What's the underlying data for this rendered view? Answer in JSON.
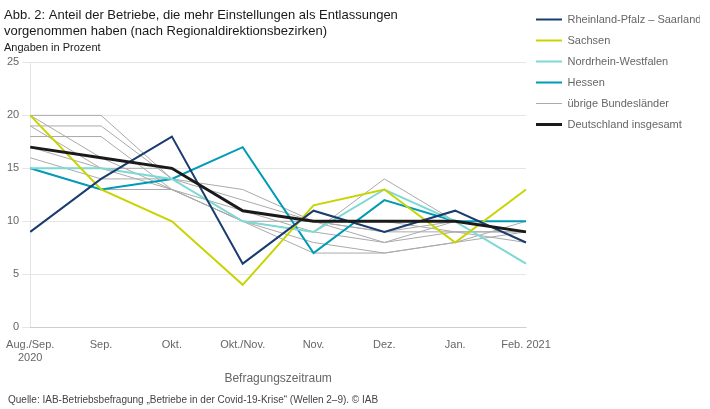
{
  "chart_data": {
    "type": "line",
    "title": [
      "Abb. 2: Anteil der Betriebe, die mehr Einstellungen als Entlassungen",
      "vorgenommen haben (nach Regionaldirektionsbezirken)"
    ],
    "subtitle": "Angaben in Prozent",
    "x_label": "Befragungszeitraum",
    "annotations": [
      "Quelle: IAB-Betriebsbefragung „Betriebe in der Covid-19-Krise“ (Wellen 2–9). © IAB"
    ],
    "categories": [
      "Aug./Sep.\n2020",
      "Sep.",
      "Okt.",
      "Okt./Nov.",
      "Nov.",
      "Dez.",
      "Jan.",
      "Feb. 2021"
    ],
    "series": [
      {
        "name": "Rheinland-Pfalz – Saarland",
        "color": "#1a3c6e",
        "values": [
          9,
          14,
          18,
          6,
          11,
          9,
          11,
          8
        ]
      },
      {
        "name": "Sachsen",
        "color": "#c8d400",
        "values": [
          20,
          13,
          10,
          4,
          11.5,
          13,
          8,
          13
        ]
      },
      {
        "name": "Nordrhein-Westfalen",
        "color": "#7ed8d4",
        "values": [
          15,
          15,
          14,
          10,
          9,
          13,
          10,
          6
        ]
      },
      {
        "name": "Hessen",
        "color": "#009bb4",
        "values": [
          15,
          13,
          14,
          17,
          7,
          12,
          10,
          10
        ]
      },
      {
        "name": "übrige Bundesländer",
        "color": "#aaaaaa",
        "values": [
          20,
          20,
          14,
          13,
          10,
          8,
          10,
          9
        ]
      },
      {
        "name": "übrige Bundesländer",
        "color": "#aaaaaa",
        "values": [
          19,
          19,
          14,
          12,
          10,
          9,
          9,
          9
        ]
      },
      {
        "name": "übrige Bundesländer",
        "color": "#aaaaaa",
        "values": [
          18,
          18,
          13,
          11,
          9,
          8,
          9,
          8
        ]
      },
      {
        "name": "übrige Bundesländer",
        "color": "#aaaaaa",
        "values": [
          17,
          15,
          13,
          10,
          9,
          14,
          10,
          9
        ]
      },
      {
        "name": "übrige Bundesländer",
        "color": "#aaaaaa",
        "values": [
          16,
          14,
          14,
          10,
          8,
          7,
          8,
          9
        ]
      },
      {
        "name": "übrige Bundesländer",
        "color": "#aaaaaa",
        "values": [
          15,
          13,
          13,
          10,
          7,
          7,
          8,
          10
        ]
      },
      {
        "name": "übrige Bundesländer",
        "color": "#aaaaaa",
        "values": [
          19,
          15,
          15,
          11,
          10,
          9,
          10,
          9
        ]
      },
      {
        "name": "übrige Bundesländer",
        "color": "#aaaaaa",
        "values": [
          20,
          16,
          13,
          10,
          10,
          10,
          9,
          9
        ]
      },
      {
        "name": "Deutschland insgesamt",
        "color": "#1a1a1a",
        "values": [
          17,
          16,
          15,
          11,
          10,
          10,
          10,
          9
        ]
      }
    ],
    "ylim": [
      0,
      25
    ],
    "yticks": [
      0,
      5,
      10,
      15,
      20,
      25
    ],
    "grid": true,
    "legend": "right"
  }
}
